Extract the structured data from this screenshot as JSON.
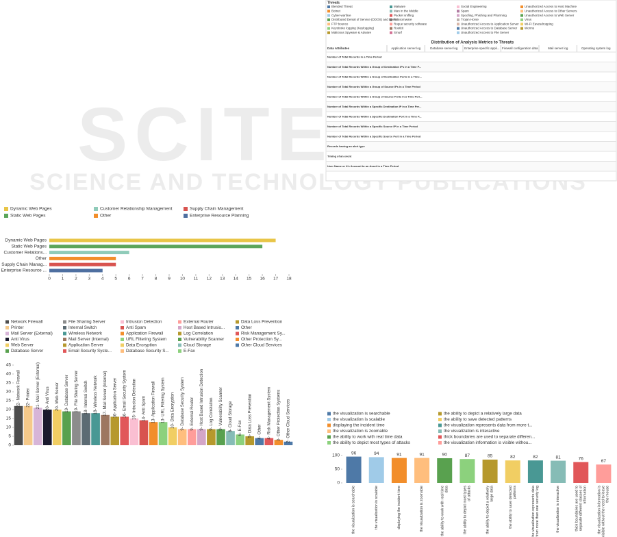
{
  "watermark": {
    "big": "SCITE",
    "small": "SCIENCE AND TECHNOLOGY PUBLICATIONS"
  },
  "threat_matrix": {
    "title": "Distribution of Analysis Metrics to Threats",
    "legend_title": "Threats",
    "threats": [
      {
        "name": "Blended Threat",
        "color": "#4e79a7"
      },
      {
        "name": "Botnet",
        "color": "#f28e2b"
      },
      {
        "name": "Cyber-warfare",
        "color": "#a0cbe8"
      },
      {
        "name": "Distributed Denial of Service (DDOS) and Denial...",
        "color": "#59a14f"
      },
      {
        "name": "FTP bounce",
        "color": "#ffbe7d"
      },
      {
        "name": "Keystroke logging (Keylogging)",
        "color": "#8cd17d"
      },
      {
        "name": "Malicious Spyware & Adware",
        "color": "#b6992d"
      },
      {
        "name": "Malware",
        "color": "#499894"
      },
      {
        "name": "Man in the Middle",
        "color": "#86bcb6"
      },
      {
        "name": "Packet sniffing",
        "color": "#e15759"
      },
      {
        "name": "Ransomware",
        "color": "#79706e"
      },
      {
        "name": "Rogue security software",
        "color": "#ff9d9a"
      },
      {
        "name": "Rootkit",
        "color": "#9d7660"
      },
      {
        "name": "Smurf",
        "color": "#d37295"
      },
      {
        "name": "Social Engineering",
        "color": "#fabfd2"
      },
      {
        "name": "Spam",
        "color": "#b07aa1"
      },
      {
        "name": "Spoofing, Phishing and Pharming",
        "color": "#d4a6c8"
      },
      {
        "name": "Trojan Horse",
        "color": "#bab0ac"
      },
      {
        "name": "Unauthorized Access to Application Server",
        "color": "#d7b5a6"
      },
      {
        "name": "Unauthorized Access to Database Server",
        "color": "#4e79a7"
      },
      {
        "name": "Unauthorized Access to File Server",
        "color": "#a0cbe8"
      },
      {
        "name": "Unauthorized Access to Host Machine",
        "color": "#f28e2b"
      },
      {
        "name": "Unauthorized Access to Other Servers",
        "color": "#ffbe7d"
      },
      {
        "name": "Unauthorized Access to Web Server",
        "color": "#59a14f"
      },
      {
        "name": "Virus",
        "color": "#8cd17d"
      },
      {
        "name": "Wi-Fi Eavesdropping",
        "color": "#f1ce63"
      },
      {
        "name": "Worms",
        "color": "#b6992d"
      }
    ],
    "row_header": "Data Attributes",
    "columns": [
      "Application server log",
      "Database server log",
      "Enterprise specific appli...",
      "Firewall configuration data",
      "Mail server log",
      "Operating system log"
    ],
    "rows": [
      "Number of Total Records in a Time Period",
      "Number of Total Records Within a Group of Destination IPs in a Time P...",
      "Number of Total Records Within a Group of Destination Ports in a Time...",
      "Number of Total Records Within a Group of Source IPs in a Time Period",
      "Number of Total Records Within a Group of Source Ports in a Time Peri...",
      "Number of Total Records Within a Specific Destination IP in a Time Per...",
      "Number of Total Records Within a Specific Destination Port in a Time P...",
      "Number of Total Records Within a Specific Source IP in a Time Period",
      "Number of Total Records Within a Specific Source Port in a Time Period",
      "Records having an alert type",
      "Timing of an event",
      "User Name or it's Account to an Asset in a Time Period"
    ]
  },
  "chart_data": [
    {
      "type": "hbar",
      "legend": [
        {
          "name": "Dynamic Web Pages",
          "color": "#e8c547"
        },
        {
          "name": "Customer Relationship Management",
          "color": "#8fcbb9"
        },
        {
          "name": "Supply Chain Management",
          "color": "#d8534f"
        },
        {
          "name": "Static Web Pages",
          "color": "#5ba55a"
        },
        {
          "name": "Other",
          "color": "#f28e2b"
        },
        {
          "name": "Enterprise Resource Planning",
          "color": "#4e6fa0"
        }
      ],
      "categories": [
        "Dynamic Web Pages",
        "Static Web Pages",
        "Customer Relations...",
        "Other",
        "Supply Chain Manag...",
        "Enterprise Resource ..."
      ],
      "colors": [
        "#e8c547",
        "#5ba55a",
        "#8fcbb9",
        "#f28e2b",
        "#d8534f",
        "#4e6fa0"
      ],
      "values": [
        17,
        16,
        6,
        5,
        5,
        4
      ],
      "xlim": [
        0,
        18
      ],
      "xticks": [
        0,
        1,
        2,
        3,
        4,
        5,
        6,
        7,
        8,
        9,
        10,
        11,
        12,
        13,
        14,
        15,
        16,
        17,
        18
      ]
    },
    {
      "type": "vbar",
      "categories": [
        "Network Firewall",
        "Printer",
        "Mail Server (External)",
        "Anti Virus",
        "Web Server",
        "Database Server",
        "File Sharing Server",
        "Internal Switch",
        "Wireless Network",
        "Mail Server (Internal)",
        "Application Server",
        "Email Security Syste...",
        "Intrusion Detection",
        "Anti Spam",
        "Application Firewall",
        "URL Filtering System",
        "Data Encryption",
        "Database Security S...",
        "External Router",
        "Host Based Intrusio...",
        "Log Correlation",
        "Vulnerability Scanner",
        "Cloud Storage",
        "E-Fax",
        "Data Loss Prevention",
        "Other",
        "Risk Management Sy...",
        "Other Protection Sy...",
        "Other Cloud Services"
      ],
      "colors": [
        "#4d4d4d",
        "#f5c98a",
        "#d7b5d8",
        "#1a1a2e",
        "#f1ce63",
        "#59a14f",
        "#8c8c8c",
        "#5c6b73",
        "#499894",
        "#9d7660",
        "#b6992d",
        "#e15759",
        "#fabfd2",
        "#d8534f",
        "#f28e2b",
        "#8cd17d",
        "#f1ce63",
        "#ffbe7d",
        "#ff9d9a",
        "#d4a6c8",
        "#b6992d",
        "#59a14f",
        "#86bcb6",
        "#8cd17d",
        "#b6992d",
        "#4e79a7",
        "#e15759",
        "#f28e2b",
        "#4e79a7"
      ],
      "values": [
        22,
        22,
        21,
        20,
        20,
        19,
        19,
        18,
        18,
        17,
        16,
        16,
        15,
        14,
        13,
        13,
        10,
        9,
        9,
        9,
        9,
        9,
        8,
        6,
        5,
        4,
        4,
        3,
        2
      ],
      "value_labels": [
        "22- Network Firewall",
        "22- Printer",
        "21- Mail Server (External)",
        "20- Anti Virus",
        "20- Web Server",
        "19- Database Server",
        "19- File Sharing Server",
        "18- Internal Switch",
        "18- Wireless Network",
        "17- Mail Server (Internal)",
        "16- Application Server",
        "16- Email Security System",
        "15- Intrusion Detection",
        "14- Anti Spam",
        "13- Application Firewall",
        "13- URL Filtering System",
        "10- Data Encryption",
        "9- Database Security System",
        "9- External Router",
        "9- Host Based Intrusion Detection",
        "9- Log Correlation",
        "9- Vulnerability Scanner",
        "8- Cloud Storage",
        "6- E-Fax",
        "5- Data Loss Prevention",
        "4- Other",
        "4- Risk Management System",
        "3- Other Protection Systems",
        "2- Other Cloud Services"
      ],
      "ylim": [
        0,
        45
      ],
      "yticks": [
        0,
        5,
        10,
        15,
        20,
        25,
        30,
        35,
        40,
        45
      ]
    },
    {
      "type": "vbar-labeled",
      "legend": [
        "the visualization is searchable",
        "the visualization is scalable",
        "displaying the incident time",
        "the visualization is zoomable",
        "the ability to work with real time data",
        "the ability to depict most types of attacks",
        "the ability to depict a relatively large data",
        "the ability to save detected patterns",
        "the visualization represents data from more t...",
        "the visualization is interactive",
        "thick boundaries are used to separate differen...",
        "the visualization information is visible withou..."
      ],
      "categories": [
        "the visualization is searchable",
        "the visualization is scalable",
        "displaying the incident time",
        "the visualization is zoomable",
        "the ability to work with real time data",
        "the ability to depict most types of attacks",
        "the ability to depict a relatively large data",
        "the ability to save detected patterns",
        "the visualization represents data from more than one security log",
        "the visualization is interactive",
        "thick boundaries are used to separate different classes of information",
        "the visualization information is visible without the need to leave the mouse"
      ],
      "colors": [
        "#4e79a7",
        "#a0cbe8",
        "#f28e2b",
        "#ffbe7d",
        "#59a14f",
        "#8cd17d",
        "#b6992d",
        "#f1ce63",
        "#499894",
        "#86bcb6",
        "#e15759",
        "#ff9d9a"
      ],
      "values": [
        96,
        94,
        91,
        91,
        90,
        87,
        85,
        82,
        82,
        81,
        76,
        67
      ],
      "ylim": [
        0,
        100
      ],
      "yticks": [
        0,
        50,
        100
      ]
    }
  ]
}
